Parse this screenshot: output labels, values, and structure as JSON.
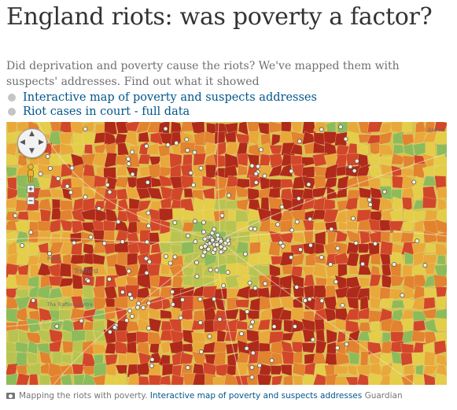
{
  "article": {
    "headline": "England riots: was poverty a factor?",
    "standfirst": "Did deprivation and poverty cause the riots? We've mapped them with suspects' addresses. Find out what it showed",
    "links": [
      {
        "label": "Interactive map of poverty and suspects addresses"
      },
      {
        "label": "Riot cases in court - full data"
      }
    ]
  },
  "map": {
    "place_labels": [
      "Trafford",
      "The Trafford Centre",
      "Barton",
      "Park"
    ],
    "colors": {
      "deep_red": "#b02a1a",
      "red": "#d2472a",
      "orange": "#e2832f",
      "amber": "#e8a93a",
      "yellow": "#e4cd48",
      "yellow_green": "#b9c450",
      "green": "#8dbb5a",
      "marker": "#f3f0de"
    },
    "controls": {
      "pan": "pan-control",
      "street_view": "pegman",
      "zoom": "zoom-slider"
    }
  },
  "caption": {
    "text": "Mapping the riots with poverty.",
    "link": "Interactive map of poverty and suspects addresses",
    "credit": "Guardian"
  }
}
